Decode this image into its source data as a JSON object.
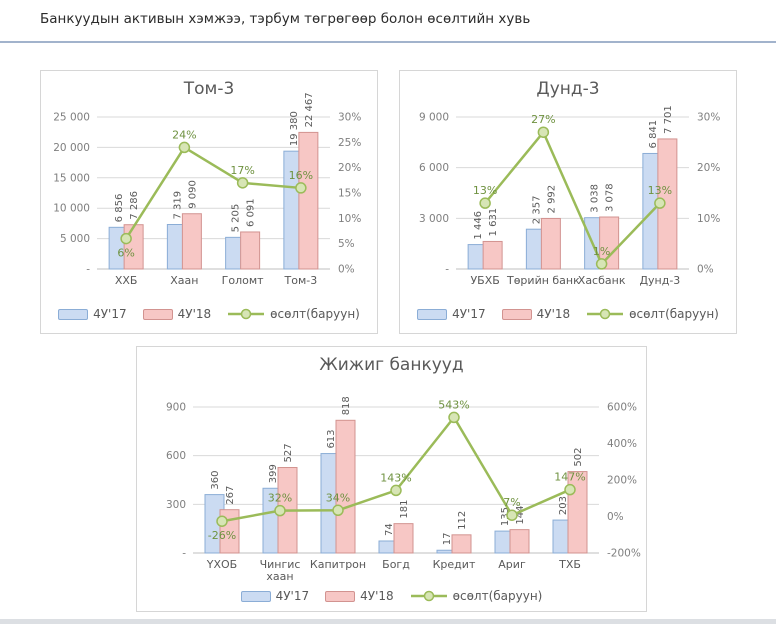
{
  "header": {
    "title": "Банкуудын активын хэмжээ, тэрбум төгрөгөөр болон өсөлтийн хувь"
  },
  "colors": {
    "bar_2017_fill": "#cbdbf2",
    "bar_2017_border": "#8badd6",
    "bar_2018_fill": "#f7c7c5",
    "bar_2018_border": "#d29390",
    "growth_line": "#9bbb59",
    "marker_fill": "#d7e5b5",
    "growth_label": "#6f9240",
    "axis_text": "#7f7f7f",
    "value_text": "#595959",
    "gridline": "#d9d9d9",
    "header_rule": "#a2b3cc"
  },
  "chart_data": [
    {
      "type": "bar",
      "title": "Том-3",
      "categories": [
        "ХХБ",
        "Хаан",
        "Голомт",
        "Том-3"
      ],
      "series": [
        {
          "name": "4У'17",
          "values": [
            6856,
            7319,
            5205,
            19380
          ],
          "labels": [
            "6 856",
            "7 319",
            "5 205",
            "19 380"
          ]
        },
        {
          "name": "4У'18",
          "values": [
            7286,
            9090,
            6091,
            22467
          ],
          "labels": [
            "7 286",
            "9 090",
            "6 091",
            "22 467"
          ]
        }
      ],
      "line": {
        "name": "өсөлт(баруун)",
        "values": [
          6,
          24,
          17,
          16
        ],
        "labels": [
          "6%",
          "24%",
          "17%",
          "16%"
        ],
        "label_below_indices": [
          0
        ]
      },
      "left_axis": {
        "min": 0,
        "max": 25000,
        "ticks": [
          "-",
          "5 000",
          "10 000",
          "15 000",
          "20 000",
          "25 000"
        ]
      },
      "right_axis": {
        "min": 0,
        "max": 30,
        "ticks": [
          "0%",
          "5%",
          "10%",
          "15%",
          "20%",
          "25%",
          "30%"
        ]
      },
      "legend_items": [
        "4У'17",
        "4У'18",
        "өсөлт(баруун)"
      ],
      "grid": true,
      "legend_position": "bottom"
    },
    {
      "type": "bar",
      "title": "Дунд-3",
      "categories": [
        "УБХБ",
        "Төрийн банк",
        "Хасбанк",
        "Дунд-3"
      ],
      "series": [
        {
          "name": "4У'17",
          "values": [
            1446,
            2357,
            3038,
            6841
          ],
          "labels": [
            "1 446",
            "2 357",
            "3 038",
            "6 841"
          ]
        },
        {
          "name": "4У'18",
          "values": [
            1631,
            2992,
            3078,
            7701
          ],
          "labels": [
            "1 631",
            "2 992",
            "3 078",
            "7 701"
          ]
        }
      ],
      "line": {
        "name": "өсөлт(баруун)",
        "values": [
          13,
          27,
          1,
          13
        ],
        "labels": [
          "13%",
          "27%",
          "1%",
          "13%"
        ],
        "label_below_indices": []
      },
      "left_axis": {
        "min": 0,
        "max": 9000,
        "ticks": [
          "-",
          "3 000",
          "6 000",
          "9 000"
        ]
      },
      "right_axis": {
        "min": 0,
        "max": 30,
        "ticks": [
          "0%",
          "10%",
          "20%",
          "30%"
        ]
      },
      "legend_items": [
        "4У'17",
        "4У'18",
        "өсөлт(баруун)"
      ],
      "grid": true,
      "legend_position": "bottom"
    },
    {
      "type": "bar",
      "title": "Жижиг банкууд",
      "categories": [
        "ҮХОБ",
        "Чингис\nхаан",
        "Капитрон",
        "Богд",
        "Кредит",
        "Ариг",
        "ТХБ"
      ],
      "series": [
        {
          "name": "4У'17",
          "values": [
            360,
            399,
            613,
            74,
            17,
            135,
            203
          ],
          "labels": [
            "360",
            "399",
            "613",
            "74",
            "17",
            "135",
            "203"
          ]
        },
        {
          "name": "4У'18",
          "values": [
            267,
            527,
            818,
            181,
            112,
            144,
            502
          ],
          "labels": [
            "267",
            "527",
            "818",
            "181",
            "112",
            "144",
            "502"
          ]
        }
      ],
      "line": {
        "name": "өсөлт(баруун)",
        "values": [
          -26,
          32,
          34,
          143,
          543,
          7,
          147
        ],
        "labels": [
          "-26%",
          "32%",
          "34%",
          "143%",
          "543%",
          "7%",
          "147%"
        ],
        "label_below_indices": [
          0
        ]
      },
      "left_axis": {
        "min": 0,
        "max": 900,
        "ticks": [
          "-",
          "300",
          "600",
          "900"
        ]
      },
      "right_axis": {
        "min": -200,
        "max": 600,
        "ticks": [
          "-200%",
          "0%",
          "200%",
          "400%",
          "600%"
        ]
      },
      "legend_items": [
        "4У'17",
        "4У'18",
        "өсөлт(баруун)"
      ],
      "grid": true,
      "legend_position": "bottom"
    }
  ]
}
